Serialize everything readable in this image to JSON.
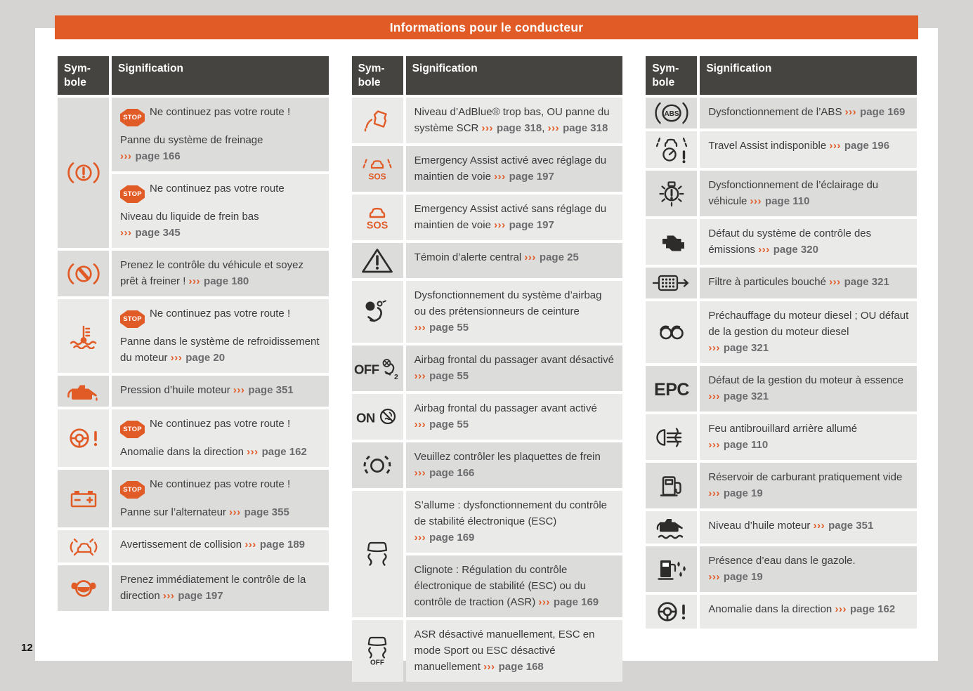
{
  "header": {
    "title": "Informations pour le conducteur"
  },
  "footer": {
    "page_number": "12"
  },
  "labels": {
    "stop": "STOP",
    "arrows": "›››"
  },
  "colors": {
    "accent": "#e15b27",
    "header_bg": "#454440",
    "row_light": "#eaeae9",
    "row_dark": "#dcdcdb",
    "text": "#3b3b3d",
    "link": "#6b6b6e",
    "icon_black": "#2d2c2a",
    "canvas": "#d5d4d2",
    "page": "#ffffff"
  },
  "tables": [
    {
      "headers": [
        "Sym-bole",
        "Signification"
      ],
      "start_shade": "dark",
      "rows": [
        {
          "icon": "brake-warning",
          "icon_color": "orange",
          "cells": [
            [
              [
                {
                  "stop": true
                },
                {
                  "text": "Ne continuez pas votre route !"
                }
              ],
              [
                {
                  "text": "Panne du système de freinage "
                },
                {
                  "page": "page 166"
                }
              ]
            ],
            [
              [
                {
                  "stop": true
                },
                {
                  "text": "Ne continuez pas votre route"
                }
              ],
              [
                {
                  "text": "Niveau du liquide de frein bas "
                },
                {
                  "page": "page 345"
                }
              ]
            ]
          ]
        },
        {
          "icon": "brake-intervention",
          "icon_color": "orange",
          "cells": [
            [
              [
                {
                  "text": "Prenez le contrôle du véhicule et soyez prêt à freiner ! "
                },
                {
                  "page": "page 180"
                }
              ]
            ]
          ]
        },
        {
          "icon": "coolant-temperature",
          "icon_color": "orange",
          "cells": [
            [
              [
                {
                  "stop": true
                },
                {
                  "text": "Ne continuez pas votre route !"
                }
              ],
              [
                {
                  "text": "Panne dans le système de refroidissement du moteur "
                },
                {
                  "page": "page 20"
                }
              ]
            ]
          ]
        },
        {
          "icon": "oil-pressure",
          "icon_color": "orange",
          "cells": [
            [
              [
                {
                  "text": "Pression d’huile moteur "
                },
                {
                  "page": "page 351"
                }
              ]
            ]
          ]
        },
        {
          "icon": "steering-warning",
          "icon_color": "orange",
          "cells": [
            [
              [
                {
                  "stop": true
                },
                {
                  "text": "Ne continuez pas votre route !"
                }
              ],
              [
                {
                  "text": "Anomalie dans la direction "
                },
                {
                  "page": "page 162"
                }
              ]
            ]
          ]
        },
        {
          "icon": "battery",
          "icon_color": "orange",
          "cells": [
            [
              [
                {
                  "stop": true
                },
                {
                  "text": "Ne continuez pas votre route !"
                }
              ],
              [
                {
                  "text": "Panne sur l’alternateur "
                },
                {
                  "page": "page 355"
                }
              ]
            ]
          ]
        },
        {
          "icon": "collision-warning",
          "icon_color": "orange",
          "cells": [
            [
              [
                {
                  "text": "Avertissement de collision "
                },
                {
                  "page": "page 189"
                }
              ]
            ]
          ]
        },
        {
          "icon": "hands-on-steering",
          "icon_color": "orange",
          "cells": [
            [
              [
                {
                  "text": "Prenez immédiatement le contrôle de la direction "
                },
                {
                  "page": "page 197"
                }
              ]
            ]
          ]
        }
      ]
    },
    {
      "headers": [
        "Sym-bole",
        "Signification"
      ],
      "start_shade": "light",
      "rows": [
        {
          "icon": "adblue",
          "icon_color": "orange",
          "cells": [
            [
              [
                {
                  "text": "Niveau d’AdBlue® trop bas, OU panne du système SCR "
                },
                {
                  "page": "page 318"
                },
                {
                  "text": ", "
                },
                {
                  "page": "page 318"
                }
              ]
            ]
          ]
        },
        {
          "icon": "emergency-assist-lane",
          "icon_color": "orange",
          "cells": [
            [
              [
                {
                  "text": "Emergency Assist activé avec réglage du maintien de voie "
                },
                {
                  "page": "page 197"
                }
              ]
            ]
          ]
        },
        {
          "icon": "emergency-assist",
          "icon_color": "orange",
          "cells": [
            [
              [
                {
                  "text": "Emergency Assist activé sans réglage du maintien de voie "
                },
                {
                  "page": "page 197"
                }
              ]
            ]
          ]
        },
        {
          "icon": "central-warning",
          "icon_color": "black",
          "cells": [
            [
              [
                {
                  "text": "Témoin d’alerte central "
                },
                {
                  "page": "page 25"
                }
              ]
            ]
          ]
        },
        {
          "icon": "airbag-fault",
          "icon_color": "black",
          "cells": [
            [
              [
                {
                  "text": "Dysfonctionnement du système d’airbag ou des prétensionneurs de ceinture "
                },
                {
                  "page": "page 55"
                }
              ]
            ]
          ]
        },
        {
          "icon": "airbag-off",
          "icon_color": "black",
          "cells": [
            [
              [
                {
                  "text": "Airbag frontal du passager avant désactivé "
                },
                {
                  "page": "page 55"
                }
              ]
            ]
          ]
        },
        {
          "icon": "airbag-on",
          "icon_color": "black",
          "cells": [
            [
              [
                {
                  "text": "Airbag frontal du passager avant activé "
                },
                {
                  "page": "page 55"
                }
              ]
            ]
          ]
        },
        {
          "icon": "brake-pads",
          "icon_color": "black",
          "cells": [
            [
              [
                {
                  "text": "Veuillez contrôler les plaquettes de frein "
                },
                {
                  "page": "page 166"
                }
              ]
            ]
          ]
        },
        {
          "icon": "esc",
          "icon_color": "black",
          "cells": [
            [
              [
                {
                  "text": "S’allume : dysfonctionnement du contrôle de stabilité électronique (ESC) "
                },
                {
                  "page": "page 169"
                }
              ]
            ],
            [
              [
                {
                  "text": "Clignote : Régulation du contrôle électronique de stabilité (ESC) ou du contrôle de traction (ASR) "
                },
                {
                  "page": "page 169"
                }
              ]
            ]
          ]
        },
        {
          "icon": "esc-off",
          "icon_color": "black",
          "cells": [
            [
              [
                {
                  "text": "ASR désactivé manuellement, ESC en mode Sport ou ESC désactivé manuellement "
                },
                {
                  "page": "page 168"
                }
              ]
            ]
          ]
        }
      ]
    },
    {
      "headers": [
        "Sym-bole",
        "Signification"
      ],
      "start_shade": "dark",
      "rows": [
        {
          "icon": "abs",
          "icon_color": "black",
          "cells": [
            [
              [
                {
                  "text": "Dysfonctionnement de l’ABS "
                },
                {
                  "page": "page 169"
                }
              ]
            ]
          ]
        },
        {
          "icon": "travel-assist",
          "icon_color": "black",
          "cells": [
            [
              [
                {
                  "text": "Travel Assist indisponible "
                },
                {
                  "page": "page 196"
                }
              ]
            ]
          ]
        },
        {
          "icon": "lighting-fault",
          "icon_color": "black",
          "cells": [
            [
              [
                {
                  "text": "Dysfonctionnement de l’éclairage du véhicule "
                },
                {
                  "page": "page 110"
                }
              ]
            ]
          ]
        },
        {
          "icon": "check-engine",
          "icon_color": "black",
          "cells": [
            [
              [
                {
                  "text": "Défaut du système de contrôle des émissions "
                },
                {
                  "page": "page 320"
                }
              ]
            ]
          ]
        },
        {
          "icon": "particulate-filter",
          "icon_color": "black",
          "cells": [
            [
              [
                {
                  "text": "Filtre à particules bouché "
                },
                {
                  "page": "page 321"
                }
              ]
            ]
          ]
        },
        {
          "icon": "glow-plug",
          "icon_color": "black",
          "cells": [
            [
              [
                {
                  "text": "Préchauffage du moteur diesel ; OU défaut de la gestion du moteur diesel "
                },
                {
                  "page": "page 321"
                }
              ]
            ]
          ]
        },
        {
          "icon": "epc",
          "icon_color": "black",
          "cells": [
            [
              [
                {
                  "text": "Défaut de la gestion du moteur à essence "
                },
                {
                  "page": "page 321"
                }
              ]
            ]
          ]
        },
        {
          "icon": "rear-fog",
          "icon_color": "black",
          "cells": [
            [
              [
                {
                  "text": "Feu antibrouillard arrière allumé "
                },
                {
                  "page": "page 110"
                }
              ]
            ]
          ]
        },
        {
          "icon": "fuel-low",
          "icon_color": "black",
          "cells": [
            [
              [
                {
                  "text": "Réservoir de carburant pratiquement vide "
                },
                {
                  "page": "page 19"
                }
              ]
            ]
          ]
        },
        {
          "icon": "oil-level",
          "icon_color": "black",
          "cells": [
            [
              [
                {
                  "text": "Niveau d’huile moteur "
                },
                {
                  "page": "page 351"
                }
              ]
            ]
          ]
        },
        {
          "icon": "water-in-fuel",
          "icon_color": "black",
          "cells": [
            [
              [
                {
                  "text": "Présence d’eau dans le gazole. "
                },
                {
                  "page": "page 19"
                }
              ]
            ]
          ]
        },
        {
          "icon": "steering-warning",
          "icon_color": "black",
          "cells": [
            [
              [
                {
                  "text": "Anomalie dans la direction "
                },
                {
                  "page": "page 162"
                }
              ]
            ]
          ]
        }
      ]
    }
  ]
}
